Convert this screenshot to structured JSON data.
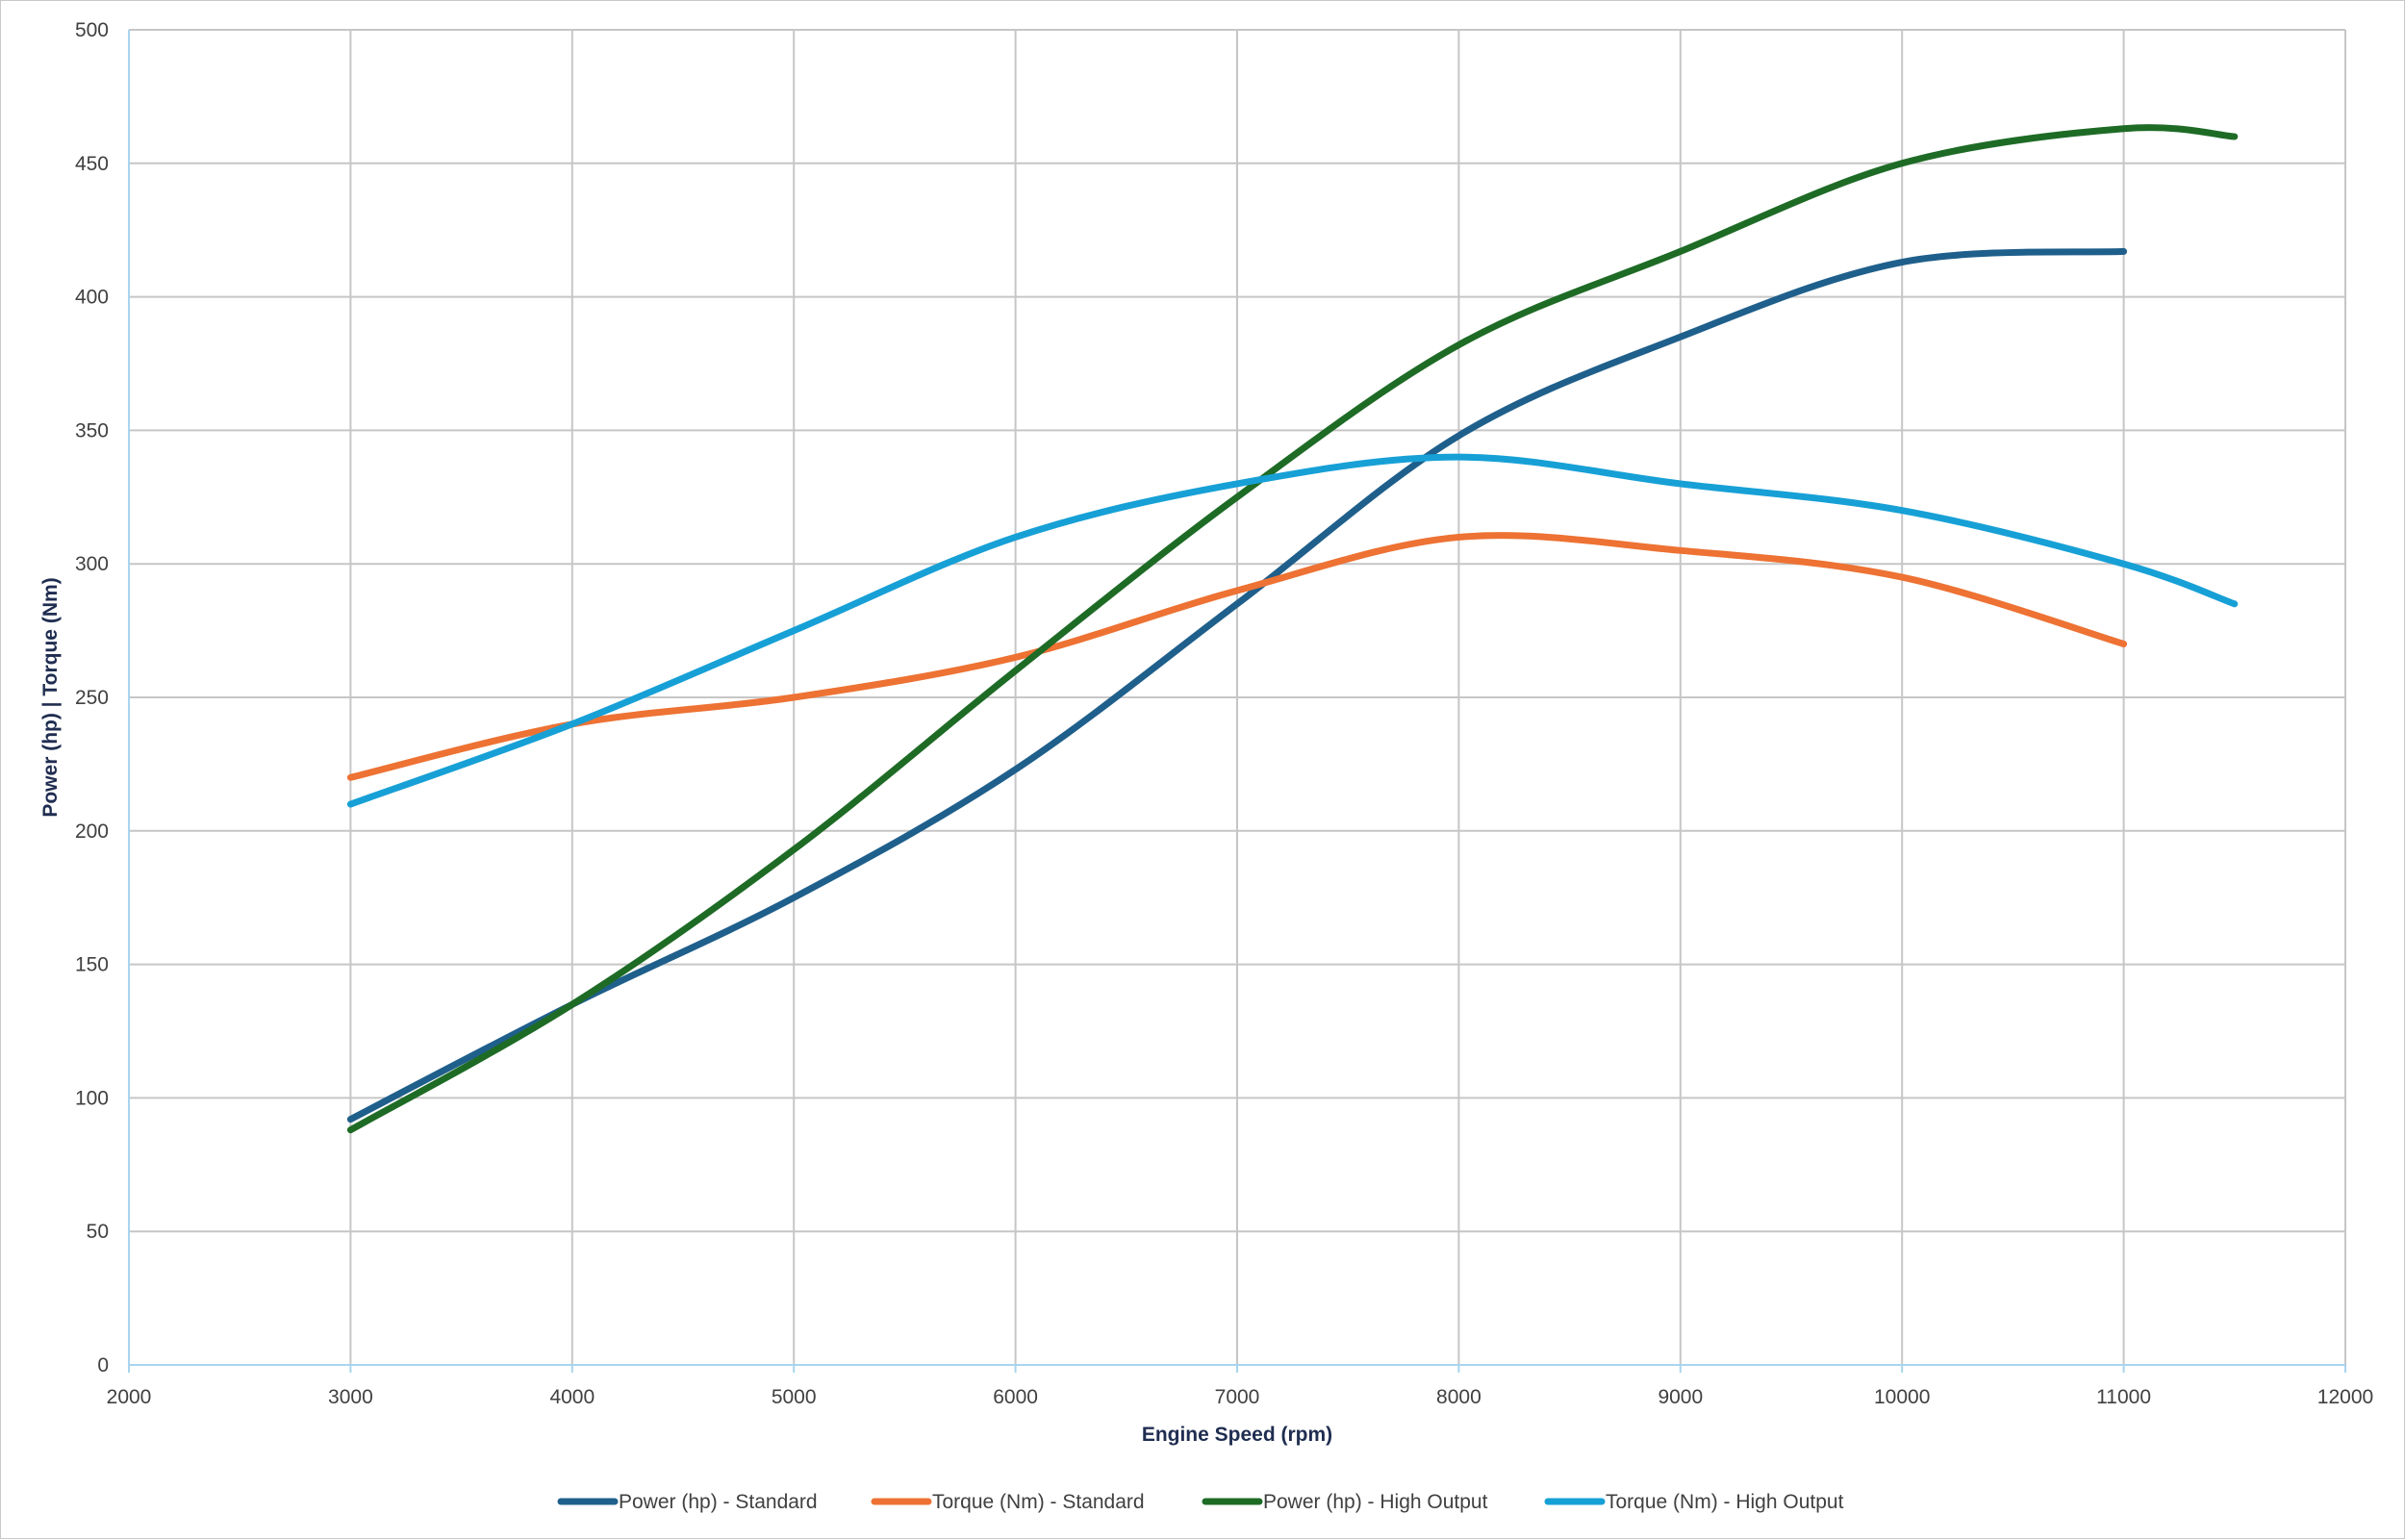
{
  "chart_data": {
    "type": "line",
    "title": "",
    "xlabel": "Engine Speed (rpm)",
    "ylabel": "Power (hp) | Torque (Nm)",
    "xlim": [
      2000,
      12000
    ],
    "ylim": [
      0,
      500
    ],
    "xticks": [
      2000,
      3000,
      4000,
      5000,
      6000,
      7000,
      8000,
      9000,
      10000,
      11000,
      12000
    ],
    "yticks": [
      0,
      50,
      100,
      150,
      200,
      250,
      300,
      350,
      400,
      450,
      500
    ],
    "grid": true,
    "smooth": true,
    "legend_position": "bottom",
    "series": [
      {
        "name": "Power (hp) - Standard",
        "color": "#1f5f8b",
        "x": [
          3000,
          4000,
          5000,
          6000,
          7000,
          8000,
          9000,
          10000,
          11000
        ],
        "y": [
          92,
          135,
          175,
          223,
          285,
          348,
          385,
          413,
          417
        ]
      },
      {
        "name": "Torque (Nm) - Standard",
        "color": "#ed7233",
        "x": [
          3000,
          4000,
          5000,
          6000,
          7000,
          8000,
          9000,
          10000,
          11000
        ],
        "y": [
          220,
          240,
          250,
          265,
          290,
          310,
          305,
          295,
          270
        ]
      },
      {
        "name": "Power (hp) - High Output",
        "color": "#1e6b26",
        "x": [
          3000,
          4000,
          5000,
          6000,
          7000,
          8000,
          9000,
          10000,
          11000,
          11500
        ],
        "y": [
          88,
          135,
          193,
          260,
          325,
          382,
          417,
          450,
          463,
          460
        ]
      },
      {
        "name": "Torque (Nm) - High Output",
        "color": "#17a0d6",
        "x": [
          3000,
          4000,
          5000,
          6000,
          7000,
          8000,
          9000,
          10000,
          11000,
          11500
        ],
        "y": [
          210,
          240,
          275,
          310,
          330,
          340,
          330,
          320,
          300,
          285
        ]
      }
    ]
  }
}
